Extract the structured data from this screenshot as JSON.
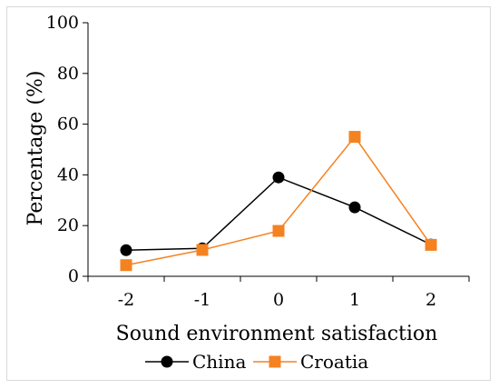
{
  "chart_data": {
    "type": "line",
    "title": "",
    "xlabel": "Sound environment satisfaction",
    "ylabel": "Percentage (%)",
    "categories": [
      "-2",
      "-1",
      "0",
      "1",
      "2"
    ],
    "ylim": [
      0,
      100
    ],
    "yticks": [
      "0",
      "20",
      "40",
      "60",
      "80",
      "100"
    ],
    "grid": false,
    "legend_position": "bottom",
    "series": [
      {
        "name": "China",
        "color": "#000000",
        "marker": "circle",
        "values": [
          10.3,
          11.0,
          39.0,
          27.2,
          12.5
        ]
      },
      {
        "name": "Croatia",
        "color": "#f58220",
        "marker": "square",
        "values": [
          4.4,
          10.4,
          17.9,
          55.0,
          12.4
        ]
      }
    ]
  }
}
